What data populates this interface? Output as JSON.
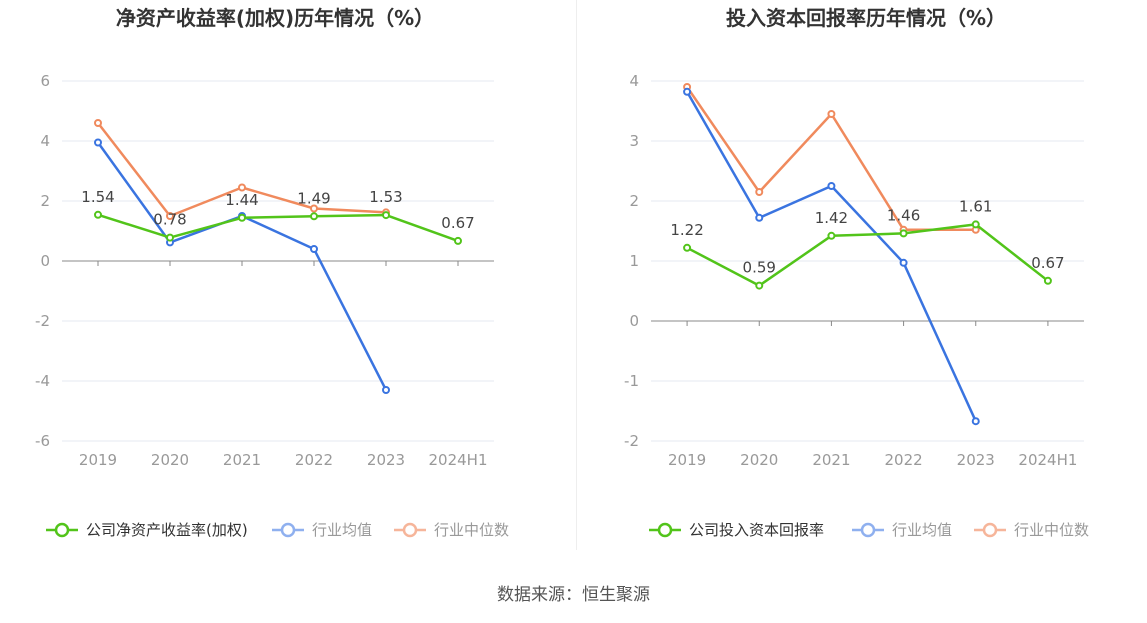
{
  "source_text": "数据来源：恒生聚源",
  "colors": {
    "company": "#52c41a",
    "avg": "#3a74e0",
    "median": "#f08a5d",
    "avg_legend": "#8fb0ef",
    "median_legend": "#f6b59a",
    "grid": "#e6eaf2",
    "axis": "#888888",
    "tick": "#999999"
  },
  "chart_data": [
    {
      "type": "line",
      "title": "净资产收益率(加权)历年情况（%）",
      "categories": [
        "2019",
        "2020",
        "2021",
        "2022",
        "2023",
        "2024H1"
      ],
      "ylim": [
        -6,
        6
      ],
      "yticks": [
        -6,
        -4,
        -2,
        0,
        2,
        4,
        6
      ],
      "legend_position": "bottom",
      "series": [
        {
          "name": "公司净资产收益率(加权)",
          "key": "company",
          "values": [
            1.54,
            0.78,
            1.44,
            1.49,
            1.53,
            0.67
          ],
          "labels": [
            "1.54",
            "0.78",
            "1.44",
            "1.49",
            "1.53",
            "0.67"
          ]
        },
        {
          "name": "行业均值",
          "key": "avg",
          "values": [
            3.95,
            0.62,
            1.5,
            0.4,
            -4.3,
            null
          ]
        },
        {
          "name": "行业中位数",
          "key": "median",
          "values": [
            4.6,
            1.5,
            2.45,
            1.75,
            1.62,
            null
          ]
        }
      ]
    },
    {
      "type": "line",
      "title": "投入资本回报率历年情况（%）",
      "categories": [
        "2019",
        "2020",
        "2021",
        "2022",
        "2023",
        "2024H1"
      ],
      "ylim": [
        -2,
        4
      ],
      "yticks": [
        -2,
        -1,
        0,
        1,
        2,
        3,
        4
      ],
      "legend_position": "bottom",
      "series": [
        {
          "name": "公司投入资本回报率",
          "key": "company",
          "values": [
            1.22,
            0.59,
            1.42,
            1.46,
            1.61,
            0.67
          ],
          "labels": [
            "1.22",
            "0.59",
            "1.42",
            "1.46",
            "1.61",
            "0.67"
          ]
        },
        {
          "name": "行业均值",
          "key": "avg",
          "values": [
            3.82,
            1.72,
            2.25,
            0.97,
            -1.67,
            null
          ]
        },
        {
          "name": "行业中位数",
          "key": "median",
          "values": [
            3.9,
            2.15,
            3.45,
            1.52,
            1.52,
            null
          ]
        }
      ]
    }
  ]
}
